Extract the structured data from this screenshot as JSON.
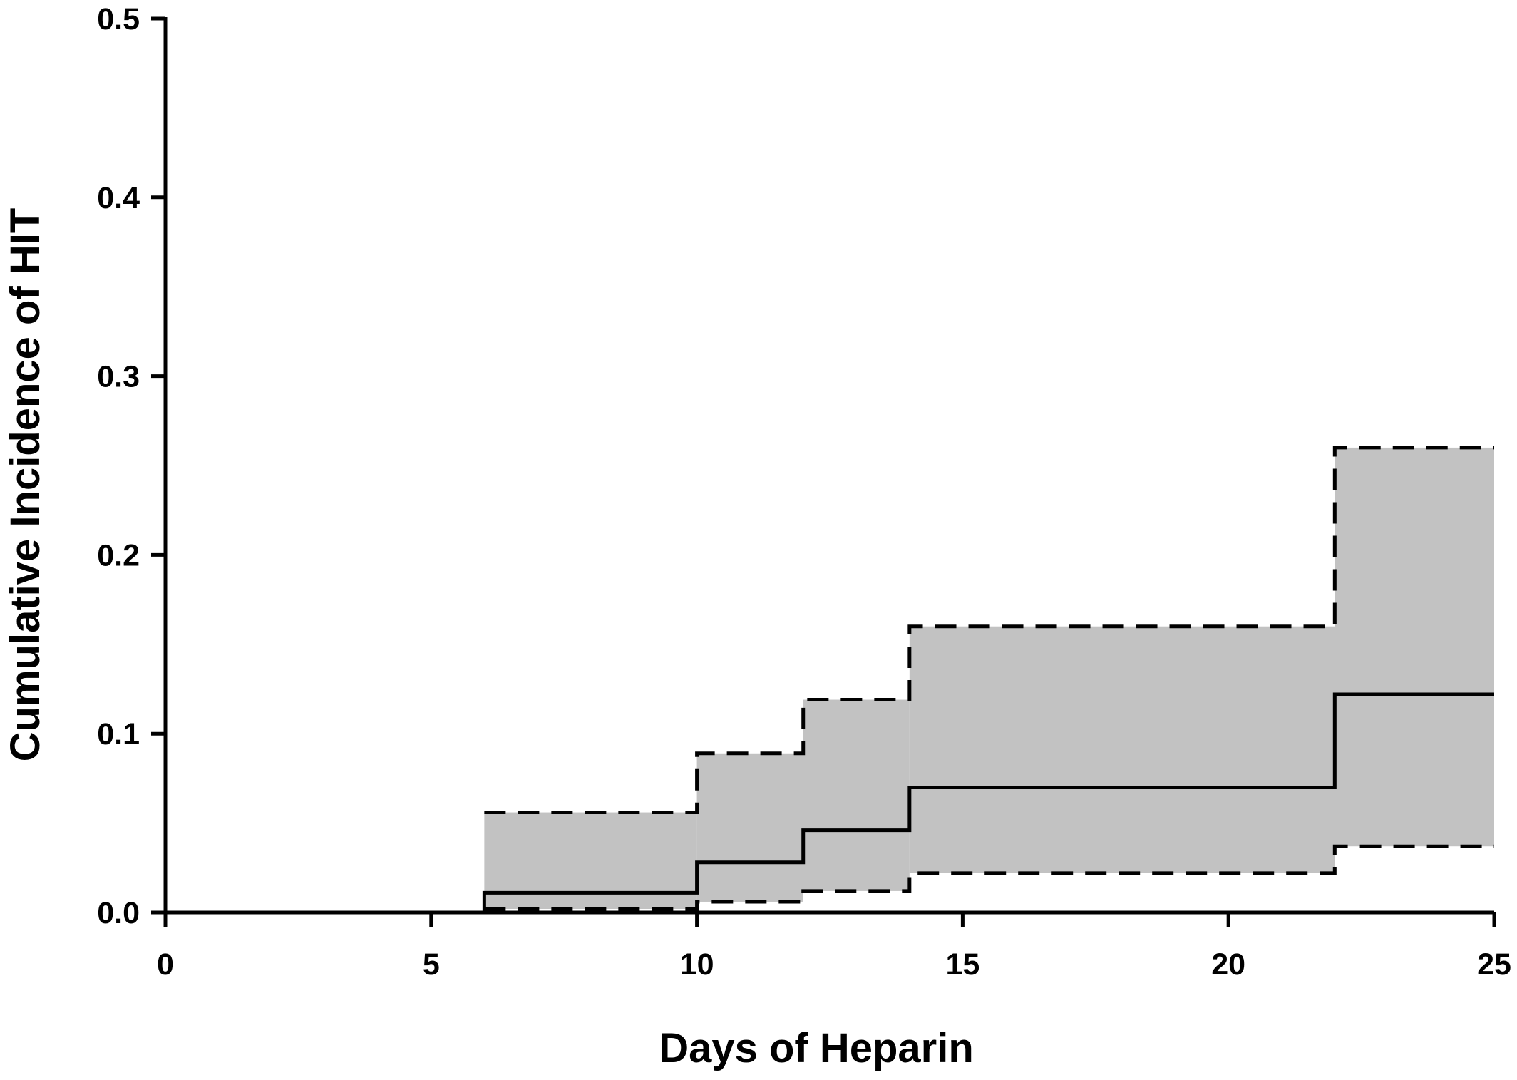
{
  "chart_data": {
    "type": "line",
    "title": "",
    "xlabel": "Days of Heparin",
    "ylabel": "Cumulative Incidence of HIT",
    "xlim": [
      0,
      25
    ],
    "ylim": [
      0,
      0.5
    ],
    "x_ticks": [
      0,
      5,
      10,
      15,
      20,
      25
    ],
    "x_tick_labels": [
      "0",
      "5",
      "10",
      "15",
      "20",
      "25"
    ],
    "y_ticks": [
      0,
      0.1,
      0.2,
      0.3,
      0.4,
      0.5
    ],
    "y_tick_labels": [
      "0.0",
      "0.1",
      "0.2",
      "0.3",
      "0.4",
      "0.5"
    ],
    "grid": false,
    "legend": "none",
    "step": true,
    "series": [
      {
        "role": "estimate",
        "line_style": "solid",
        "x": [
          1,
          6,
          10,
          12,
          14,
          22,
          25
        ],
        "y": [
          0.0,
          0.011,
          0.028,
          0.046,
          0.07,
          0.122,
          0.122
        ]
      },
      {
        "role": "upper_bound",
        "line_style": "dashed",
        "x": [
          6,
          10,
          12,
          14,
          22,
          25
        ],
        "y": [
          0.056,
          0.089,
          0.119,
          0.16,
          0.26,
          0.26
        ]
      },
      {
        "role": "lower_bound",
        "line_style": "dashed",
        "x": [
          6,
          10,
          12,
          14,
          22,
          25
        ],
        "y": [
          0.002,
          0.006,
          0.012,
          0.022,
          0.037,
          0.037
        ]
      }
    ],
    "band_fill_color": "#c2c2c2",
    "line_color": "#000000"
  }
}
